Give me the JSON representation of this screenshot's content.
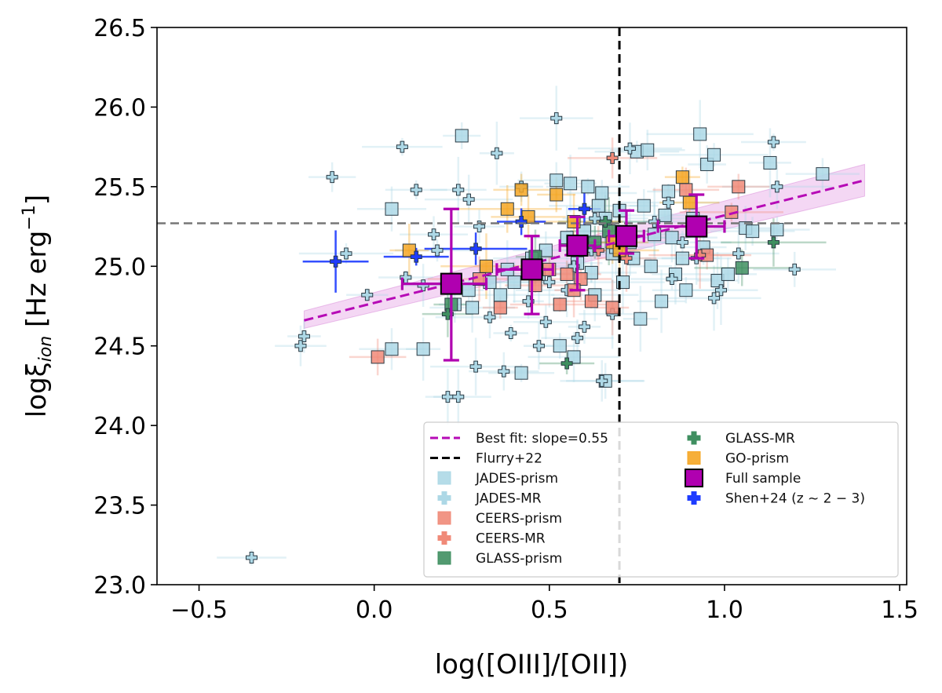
{
  "chart_data": {
    "type": "scatter",
    "xlabel": "log([OIII]/[OII])",
    "ylabel_main": "logξ",
    "ylabel_sub": "ion",
    "ylabel_units": " [Hz erg",
    "ylabel_exp": "−1",
    "ylabel_close": "]",
    "xlim": [
      -0.62,
      1.52
    ],
    "ylim": [
      23.0,
      26.5
    ],
    "xticks": [
      -0.5,
      0.0,
      0.5,
      1.0,
      1.5
    ],
    "xtick_labels": [
      "−0.5",
      "0.0",
      "0.5",
      "1.0",
      "1.5"
    ],
    "yticks": [
      23.0,
      23.5,
      24.0,
      24.5,
      25.0,
      25.5,
      26.0,
      26.5
    ],
    "ytick_labels": [
      "23.0",
      "23.5",
      "24.0",
      "24.5",
      "25.0",
      "25.5",
      "26.0",
      "26.5"
    ],
    "reference_lines": {
      "vertical_x": 0.7,
      "horizontal_y": 25.27
    },
    "best_fit": {
      "label": "Best fit: slope=0.55",
      "slope": 0.55,
      "intercept": 24.77,
      "x_range": [
        -0.2,
        1.4
      ],
      "band_low_ends": [
        24.61,
        25.44
      ],
      "band_high_ends": [
        24.72,
        25.64
      ]
    },
    "legend": [
      {
        "label": "Best fit: slope=0.55",
        "marker": "dashed-line",
        "color": "#b60ab6"
      },
      {
        "label": "Flurry+22",
        "marker": "dashed-line",
        "color": "#000000"
      },
      {
        "label": "JADES-prism",
        "marker": "square",
        "color": "#add8e6"
      },
      {
        "label": "JADES-MR",
        "marker": "plus",
        "color": "#add8e6"
      },
      {
        "label": "CEERS-prism",
        "marker": "square",
        "color": "#f08a78"
      },
      {
        "label": "CEERS-MR",
        "marker": "plus",
        "color": "#f08a78"
      },
      {
        "label": "GLASS-prism",
        "marker": "square",
        "color": "#3f8f60"
      },
      {
        "label": "GLASS-MR",
        "marker": "plus",
        "color": "#3f8f60"
      },
      {
        "label": "GO-prism",
        "marker": "square",
        "color": "#f5a623"
      },
      {
        "label": "Full sample",
        "marker": "big-square",
        "color": "#b000b0"
      },
      {
        "label": "Shen+24 (z ~ 2 − 3)",
        "marker": "plus",
        "color": "#1e3cff"
      }
    ],
    "series": [
      {
        "name": "JADES-prism",
        "marker": "square",
        "color": "#add8e6",
        "points": [
          [
            0.05,
            25.36
          ],
          [
            0.25,
            25.82
          ],
          [
            0.05,
            24.48
          ],
          [
            0.14,
            24.48
          ],
          [
            0.52,
            25.54
          ],
          [
            0.56,
            25.52
          ],
          [
            0.61,
            25.5
          ],
          [
            0.65,
            25.46
          ],
          [
            0.75,
            25.72
          ],
          [
            0.78,
            25.73
          ],
          [
            0.84,
            25.47
          ],
          [
            0.93,
            25.83
          ],
          [
            0.95,
            25.64
          ],
          [
            0.97,
            25.7
          ],
          [
            1.06,
            25.24
          ],
          [
            1.08,
            25.22
          ],
          [
            1.13,
            25.65
          ],
          [
            1.15,
            25.23
          ],
          [
            1.28,
            25.58
          ],
          [
            0.98,
            24.91
          ],
          [
            1.01,
            24.95
          ],
          [
            0.76,
            24.67
          ],
          [
            0.82,
            24.78
          ],
          [
            0.89,
            24.85
          ],
          [
            0.66,
            24.28
          ],
          [
            0.57,
            24.43
          ],
          [
            0.53,
            24.5
          ],
          [
            0.42,
            24.33
          ],
          [
            0.23,
            24.76
          ],
          [
            0.28,
            24.74
          ],
          [
            0.36,
            24.82
          ],
          [
            0.4,
            24.9
          ],
          [
            0.47,
            24.95
          ],
          [
            0.49,
            25.1
          ],
          [
            0.58,
            25.02
          ],
          [
            0.62,
            24.96
          ],
          [
            0.68,
            25.08
          ],
          [
            0.73,
            25.15
          ],
          [
            0.8,
            25.2
          ],
          [
            0.85,
            25.18
          ],
          [
            0.88,
            25.05
          ],
          [
            0.91,
            25.3
          ],
          [
            0.94,
            25.12
          ],
          [
            0.66,
            25.3
          ],
          [
            0.7,
            25.35
          ],
          [
            0.77,
            25.38
          ],
          [
            0.83,
            25.32
          ],
          [
            0.6,
            25.22
          ],
          [
            0.55,
            25.18
          ],
          [
            0.45,
            25.05
          ],
          [
            0.38,
            24.98
          ],
          [
            0.33,
            24.9
          ],
          [
            0.27,
            24.85
          ],
          [
            0.63,
            24.82
          ],
          [
            0.71,
            24.9
          ],
          [
            0.86,
            24.95
          ],
          [
            0.79,
            25.0
          ],
          [
            0.74,
            25.05
          ],
          [
            0.69,
            25.12
          ],
          [
            0.64,
            25.38
          ]
        ]
      },
      {
        "name": "JADES-MR",
        "marker": "plus",
        "color": "#add8e6",
        "points": [
          [
            -0.35,
            23.17
          ],
          [
            -0.21,
            24.5
          ],
          [
            -0.2,
            24.56
          ],
          [
            -0.12,
            25.56
          ],
          [
            -0.08,
            25.08
          ],
          [
            -0.02,
            24.82
          ],
          [
            0.08,
            25.75
          ],
          [
            0.12,
            25.48
          ],
          [
            0.17,
            25.2
          ],
          [
            0.21,
            24.18
          ],
          [
            0.24,
            24.18
          ],
          [
            0.24,
            25.48
          ],
          [
            0.27,
            25.42
          ],
          [
            0.3,
            25.25
          ],
          [
            0.35,
            25.71
          ],
          [
            0.39,
            24.58
          ],
          [
            0.42,
            25.5
          ],
          [
            0.47,
            24.5
          ],
          [
            0.49,
            24.65
          ],
          [
            0.52,
            25.93
          ],
          [
            0.58,
            24.55
          ],
          [
            0.63,
            25.3
          ],
          [
            0.65,
            24.28
          ],
          [
            0.73,
            25.74
          ],
          [
            0.8,
            25.28
          ],
          [
            0.84,
            25.4
          ],
          [
            0.92,
            25.05
          ],
          [
            0.97,
            24.8
          ],
          [
            0.99,
            24.85
          ],
          [
            1.04,
            25.08
          ],
          [
            1.14,
            25.78
          ],
          [
            1.15,
            25.5
          ],
          [
            1.2,
            24.98
          ],
          [
            0.29,
            24.37
          ],
          [
            0.37,
            24.34
          ],
          [
            0.55,
            24.85
          ],
          [
            0.6,
            24.62
          ],
          [
            0.68,
            24.7
          ],
          [
            0.85,
            24.92
          ],
          [
            0.18,
            25.1
          ],
          [
            0.14,
            24.88
          ],
          [
            0.09,
            24.93
          ],
          [
            0.33,
            24.68
          ],
          [
            0.44,
            24.78
          ],
          [
            0.5,
            24.9
          ],
          [
            0.57,
            25.0
          ],
          [
            0.62,
            25.1
          ],
          [
            0.72,
            25.18
          ],
          [
            0.88,
            25.15
          ]
        ]
      },
      {
        "name": "CEERS-prism",
        "marker": "square",
        "color": "#f08a78",
        "points": [
          [
            0.01,
            24.43
          ],
          [
            0.3,
            24.92
          ],
          [
            0.36,
            24.74
          ],
          [
            0.55,
            24.95
          ],
          [
            0.59,
            24.92
          ],
          [
            0.62,
            24.78
          ],
          [
            0.68,
            24.74
          ],
          [
            0.89,
            25.48
          ],
          [
            1.02,
            25.34
          ],
          [
            1.04,
            25.5
          ],
          [
            0.46,
            24.88
          ],
          [
            0.57,
            24.85
          ],
          [
            0.53,
            24.76
          ],
          [
            0.95,
            25.07
          ],
          [
            0.5,
            24.98
          ]
        ]
      },
      {
        "name": "CEERS-MR",
        "marker": "plus",
        "color": "#f08a78",
        "points": [
          [
            0.68,
            25.68
          ],
          [
            0.64,
            25.1
          ],
          [
            0.93,
            25.07
          ],
          [
            0.72,
            25.05
          ]
        ]
      },
      {
        "name": "GLASS-prism",
        "marker": "square",
        "color": "#3f8f60",
        "points": [
          [
            1.05,
            24.99
          ],
          [
            0.22,
            24.76
          ],
          [
            0.46,
            25.06
          ],
          [
            0.67,
            25.22
          ],
          [
            0.63,
            25.15
          ]
        ]
      },
      {
        "name": "GLASS-MR",
        "marker": "plus",
        "color": "#3f8f60",
        "points": [
          [
            0.55,
            24.39
          ],
          [
            1.14,
            25.15
          ],
          [
            0.66,
            25.28
          ],
          [
            0.21,
            24.7
          ]
        ]
      },
      {
        "name": "GO-prism",
        "marker": "square",
        "color": "#f5a623",
        "points": [
          [
            0.1,
            25.1
          ],
          [
            0.38,
            25.36
          ],
          [
            0.42,
            25.48
          ],
          [
            0.44,
            25.31
          ],
          [
            0.52,
            25.45
          ],
          [
            0.57,
            25.28
          ],
          [
            0.68,
            25.15
          ],
          [
            0.7,
            25.1
          ],
          [
            0.88,
            25.56
          ],
          [
            0.9,
            25.4
          ],
          [
            0.32,
            25.0
          ]
        ]
      },
      {
        "name": "Shen+24",
        "marker": "plus",
        "color": "#1e3cff",
        "points": [
          [
            -0.11,
            25.03
          ],
          [
            0.12,
            25.06
          ],
          [
            0.29,
            25.11
          ],
          [
            0.42,
            25.28
          ],
          [
            0.6,
            25.36
          ]
        ]
      },
      {
        "name": "Full sample",
        "marker": "big-square",
        "color": "#b000b0",
        "points": [
          [
            0.22,
            24.89
          ],
          [
            0.45,
            24.98
          ],
          [
            0.58,
            25.13
          ],
          [
            0.72,
            25.19
          ],
          [
            0.92,
            25.25
          ]
        ],
        "yerr": [
          [
            0.48,
            0.47
          ],
          [
            0.28,
            0.21
          ],
          [
            0.28,
            0.18
          ],
          [
            0.11,
            0.16
          ],
          [
            0.2,
            0.2
          ]
        ],
        "xerr": [
          [
            0.14,
            0.1
          ],
          [
            0.1,
            0.06
          ],
          [
            0.05,
            0.05
          ],
          [
            0.05,
            0.05
          ],
          [
            0.11,
            0.08
          ]
        ]
      }
    ]
  }
}
